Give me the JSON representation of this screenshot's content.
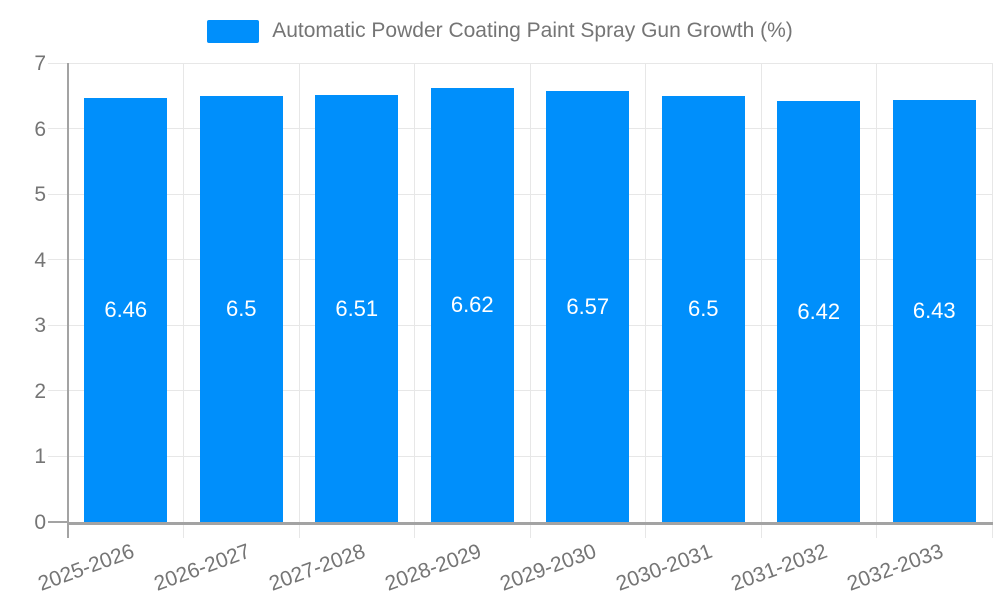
{
  "legend": {
    "label": "Automatic Powder Coating Paint Spray Gun Growth (%)"
  },
  "chart_data": {
    "type": "bar",
    "title": "Automatic Powder Coating Paint Spray Gun Growth (%)",
    "categories": [
      "2025-2026",
      "2026-2027",
      "2027-2028",
      "2028-2029",
      "2029-2030",
      "2030-2031",
      "2031-2032",
      "2032-2033"
    ],
    "values": [
      6.46,
      6.5,
      6.51,
      6.62,
      6.57,
      6.5,
      6.42,
      6.43
    ],
    "value_labels": [
      "6.46",
      "6.5",
      "6.51",
      "6.62",
      "6.57",
      "6.5",
      "6.42",
      "6.43"
    ],
    "xlabel": "",
    "ylabel": "",
    "ylim": [
      0,
      7
    ],
    "yticks": [
      0,
      1,
      2,
      3,
      4,
      5,
      6,
      7
    ],
    "grid": true,
    "legend_position": "top",
    "x_label_rotation_deg": -20,
    "colors": {
      "bar": "#008FFB",
      "bar_label": "#ffffff",
      "axis_text": "#757575",
      "grid_line": "#e7e7e7",
      "axis_line": "#a3a3a3",
      "background": "#ffffff"
    }
  }
}
